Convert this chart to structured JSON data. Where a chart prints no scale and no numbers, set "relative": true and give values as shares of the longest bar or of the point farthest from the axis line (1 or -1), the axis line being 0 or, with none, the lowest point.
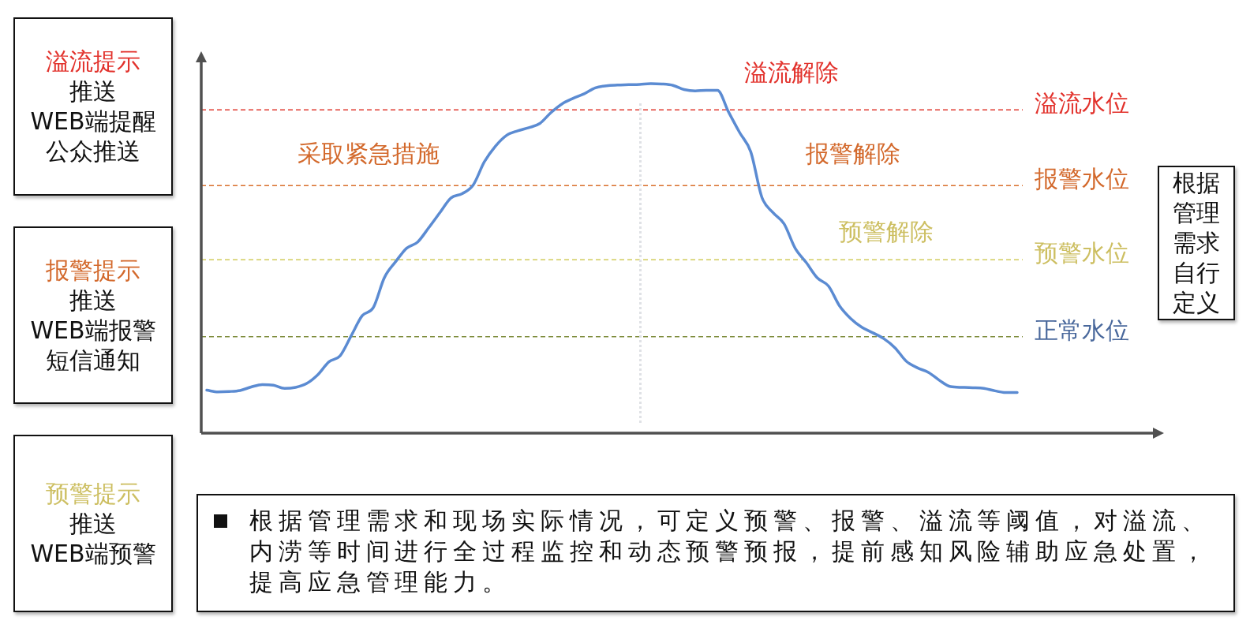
{
  "chart_data": {
    "type": "line",
    "relative": true,
    "tick_labels": false,
    "marker": "none",
    "categories": [
      null,
      null,
      null,
      null,
      null,
      null,
      null,
      null,
      null,
      null,
      null,
      null,
      null,
      null,
      null,
      null,
      null,
      null,
      null,
      null,
      null,
      null,
      null,
      null,
      null,
      null,
      null,
      null,
      null,
      null,
      null,
      null,
      null,
      null,
      null,
      null,
      null,
      null,
      null,
      null,
      null,
      null,
      null,
      null,
      null,
      null,
      null,
      null,
      null,
      null,
      null,
      null,
      null,
      null,
      null,
      null,
      null,
      null,
      null,
      null,
      null,
      null,
      null,
      null,
      null,
      null,
      null,
      null,
      null,
      null,
      null,
      null,
      null,
      null
    ],
    "color": "#5b8bd2",
    "values": [
      0.123,
      0.118,
      0.119,
      0.122,
      0.132,
      0.139,
      0.137,
      0.128,
      0.131,
      0.142,
      0.167,
      0.204,
      0.221,
      0.278,
      0.336,
      0.359,
      0.445,
      0.49,
      0.529,
      0.547,
      0.588,
      0.631,
      0.673,
      0.685,
      0.71,
      0.776,
      0.821,
      0.852,
      0.865,
      0.874,
      0.886,
      0.917,
      0.942,
      0.958,
      0.971,
      0.988,
      0.994,
      0.996,
      0.997,
      0.998,
      1.0,
      0.999,
      0.995,
      0.983,
      0.979,
      0.981,
      0.981,
      0.919,
      0.86,
      0.805,
      0.675,
      0.631,
      0.599,
      0.529,
      0.488,
      0.444,
      0.421,
      0.364,
      0.328,
      0.303,
      0.287,
      0.27,
      0.244,
      0.206,
      0.187,
      0.174,
      0.151,
      0.133,
      0.131,
      0.13,
      0.128,
      0.121,
      0.116,
      0.116
    ],
    "ref_lines": [
      {
        "axis": "y",
        "value": 0.925,
        "label": "溢流水位",
        "color": "#e03a2f",
        "line_style": "dashed"
      },
      {
        "axis": "y",
        "value": 0.708,
        "label": "报警水位",
        "color": "#d96f2c",
        "line_style": "dashed"
      },
      {
        "axis": "y",
        "value": 0.496,
        "label": "预警水位",
        "color": "#d1cb5a",
        "line_style": "dashed"
      },
      {
        "axis": "y",
        "value": 0.276,
        "label": "正常水位",
        "color": "#7f8d3d",
        "line_style": "dashed"
      }
    ],
    "annotations": [
      "溢流解除",
      "采取紧急措施",
      "报警解除",
      "预警解除",
      "溢流提示",
      "推送",
      "WEB端提醒",
      "公众推送",
      "报警提示",
      "推送",
      "WEB端报警",
      "短信通知",
      "预警提示",
      "推送",
      "WEB端预警",
      "根据管理需求自行定义",
      "根据管理需求和现场实际情况，可定义预警、报警、溢流等阈值，对溢流、内涝等时间进行全过程监控和动态预警预报，提前感知风险辅助应急处置，提高应急管理能力。"
    ]
  }
}
